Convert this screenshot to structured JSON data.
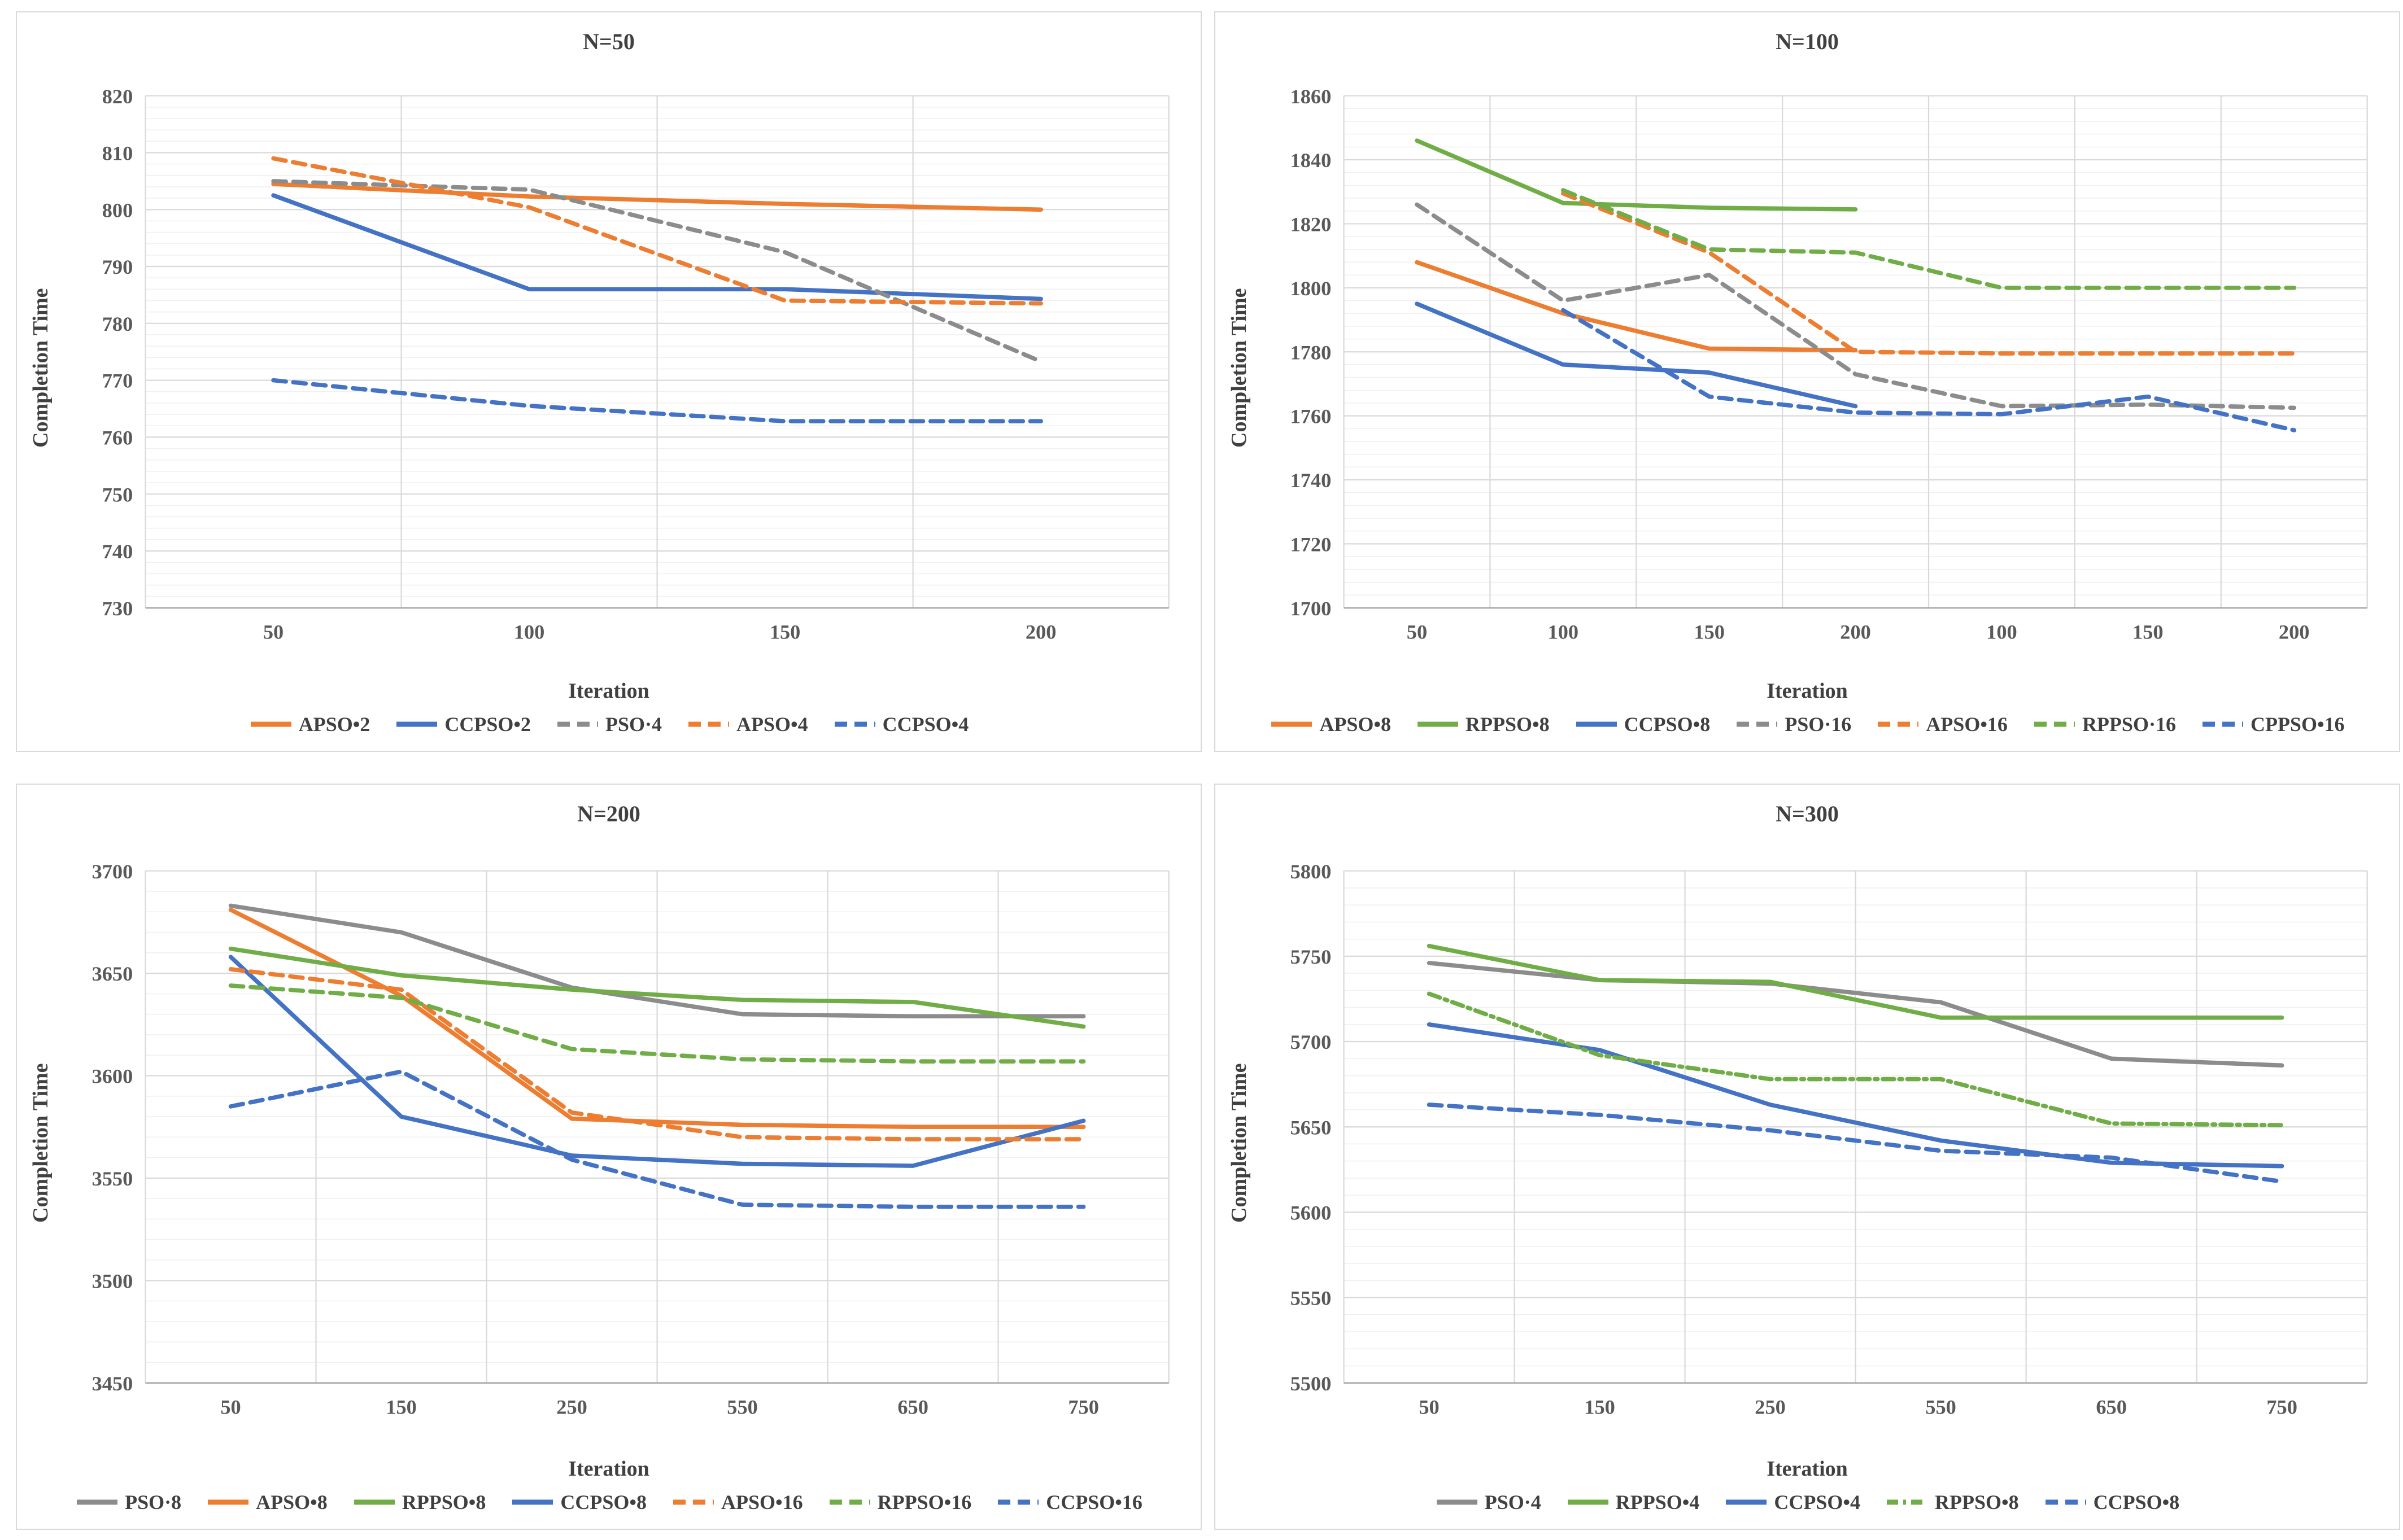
{
  "chart_data": [
    {
      "type": "line",
      "title": "N=50",
      "xlabel": "Iteration",
      "ylabel": "Completion Time",
      "ylim": [
        730,
        820
      ],
      "ytick_major": 10,
      "ytick_minor": 2,
      "grid": true,
      "legend_position": "bottom",
      "categories": [
        "50",
        "100",
        "150",
        "200"
      ],
      "series": [
        {
          "name": "APSO•2",
          "color": "#ED7D31",
          "style": "solid",
          "values": [
            804.5,
            802.3,
            801,
            800
          ]
        },
        {
          "name": "CCPSO•2",
          "color": "#4472C4",
          "style": "solid",
          "values": [
            802.5,
            786,
            786,
            784.3
          ]
        },
        {
          "name": "PSO·4",
          "color": "#8C8C8C",
          "style": "dash",
          "values": [
            805,
            803.5,
            792.5,
            773.3
          ]
        },
        {
          "name": "APSO•4",
          "color": "#ED7D31",
          "style": "dash",
          "values": [
            809,
            800.4,
            784,
            783.5
          ]
        },
        {
          "name": "CCPSO•4",
          "color": "#4472C4",
          "style": "dash",
          "values": [
            770,
            765.5,
            762.8,
            762.8
          ]
        }
      ]
    },
    {
      "type": "line",
      "title": "N=100",
      "xlabel": "Iteration",
      "ylabel": "Completion Time",
      "ylim": [
        1700,
        1860
      ],
      "ytick_major": 20,
      "ytick_minor": 4,
      "grid": true,
      "legend_position": "bottom",
      "categories": [
        "50",
        "100",
        "150",
        "200",
        "100",
        "150",
        "200"
      ],
      "series": [
        {
          "name": "APSO•8",
          "color": "#ED7D31",
          "style": "solid",
          "values": [
            1808,
            1792,
            1781,
            1780.5,
            null,
            null,
            null
          ]
        },
        {
          "name": "RPPSO•8",
          "color": "#70AD47",
          "style": "solid",
          "values": [
            1846,
            1826.5,
            1825,
            1824.5,
            null,
            null,
            null
          ]
        },
        {
          "name": "CCPSO•8",
          "color": "#4472C4",
          "style": "solid",
          "values": [
            1795,
            1776,
            1773.5,
            1763,
            null,
            null,
            null
          ]
        },
        {
          "name": "PSO·16",
          "color": "#8C8C8C",
          "style": "dash",
          "values": [
            1826,
            1796,
            1804,
            1773,
            1763,
            1763.5,
            1762.5
          ]
        },
        {
          "name": "APSO•16",
          "color": "#ED7D31",
          "style": "dash",
          "values": [
            null,
            1829.5,
            1811,
            1780,
            1779.5,
            1779.5,
            1779.5
          ]
        },
        {
          "name": "RPPSO·16",
          "color": "#70AD47",
          "style": "dash",
          "values": [
            null,
            1830.5,
            1812,
            1811,
            1800,
            1800,
            1800
          ]
        },
        {
          "name": "CPPSO•16",
          "color": "#4472C4",
          "style": "dash",
          "values": [
            null,
            1793,
            1766,
            1761,
            1760.5,
            1766,
            1755.5
          ]
        }
      ]
    },
    {
      "type": "line",
      "title": "N=200",
      "xlabel": "Iteration",
      "ylabel": "Completion Time",
      "ylim": [
        3450,
        3700
      ],
      "ytick_major": 50,
      "ytick_minor": 10,
      "grid": true,
      "legend_position": "bottom",
      "categories": [
        "50",
        "150",
        "250",
        "550",
        "650",
        "750"
      ],
      "series": [
        {
          "name": "PSO·8",
          "color": "#8C8C8C",
          "style": "solid",
          "values": [
            3683,
            3670,
            3643,
            3630,
            3629,
            3629
          ]
        },
        {
          "name": "APSO•8",
          "color": "#ED7D31",
          "style": "solid",
          "values": [
            3681,
            3639,
            3579,
            3576,
            3575,
            3575
          ]
        },
        {
          "name": "RPPSO•8",
          "color": "#70AD47",
          "style": "solid",
          "values": [
            3662,
            3649,
            3642,
            3637,
            3636,
            3624
          ]
        },
        {
          "name": "CCPSO•8",
          "color": "#4472C4",
          "style": "solid",
          "values": [
            3658,
            3580,
            3561,
            3557,
            3556,
            3578
          ]
        },
        {
          "name": "APSO•16",
          "color": "#ED7D31",
          "style": "dash",
          "values": [
            3652,
            3642,
            3582,
            3570,
            3569,
            3569
          ]
        },
        {
          "name": "RPPSO•16",
          "color": "#70AD47",
          "style": "dash",
          "values": [
            3644,
            3638,
            3613,
            3608,
            3607,
            3607
          ]
        },
        {
          "name": "CCPSO•16",
          "color": "#4472C4",
          "style": "dash",
          "values": [
            3585,
            3602,
            3559,
            3537,
            3536,
            3536
          ]
        }
      ]
    },
    {
      "type": "line",
      "title": "N=300",
      "xlabel": "Iteration",
      "ylabel": "Completion Time",
      "ylim": [
        5500,
        5800
      ],
      "ytick_major": 50,
      "ytick_minor": 10,
      "grid": true,
      "legend_position": "bottom",
      "categories": [
        "50",
        "150",
        "250",
        "550",
        "650",
        "750"
      ],
      "series": [
        {
          "name": "PSO·4",
          "color": "#8C8C8C",
          "style": "solid",
          "values": [
            5746,
            5736,
            5734,
            5723,
            5690,
            5686
          ]
        },
        {
          "name": "RPPSO•4",
          "color": "#70AD47",
          "style": "solid",
          "values": [
            5756,
            5736,
            5735,
            5714,
            5714,
            5714
          ]
        },
        {
          "name": "CCPSO•4",
          "color": "#4472C4",
          "style": "solid",
          "values": [
            5710,
            5695,
            5663,
            5642,
            5629,
            5627
          ]
        },
        {
          "name": "RPPSO•8",
          "color": "#70AD47",
          "style": "dashdot",
          "values": [
            5728,
            5692,
            5678,
            5678,
            5652,
            5651
          ]
        },
        {
          "name": "CCPSO•8",
          "color": "#4472C4",
          "style": "dash",
          "values": [
            5663,
            5657,
            5648,
            5636,
            5632,
            5618
          ]
        }
      ]
    }
  ]
}
